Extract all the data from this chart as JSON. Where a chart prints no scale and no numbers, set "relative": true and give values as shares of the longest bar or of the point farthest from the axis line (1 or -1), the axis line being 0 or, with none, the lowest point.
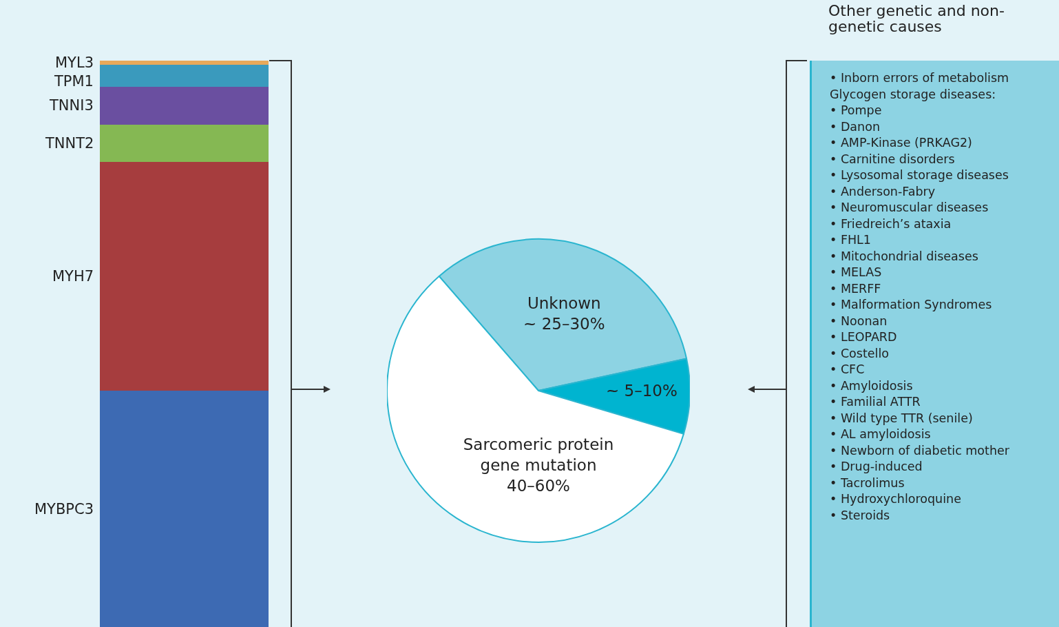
{
  "chart_data": [
    {
      "type": "bar",
      "stacked": true,
      "relative": true,
      "categories": [
        null
      ],
      "series": [
        {
          "name": "MYBPC3",
          "color": "#3d6ab3",
          "values": [
            0.417
          ]
        },
        {
          "name": "MYH7",
          "color": "#a63d3e",
          "values": [
            0.404
          ]
        },
        {
          "name": "TNNT2",
          "color": "#85b853",
          "values": [
            0.066
          ]
        },
        {
          "name": "TNNI3",
          "color": "#6a4fa0",
          "values": [
            0.067
          ]
        },
        {
          "name": "TPM1",
          "color": "#3a9abd",
          "values": [
            0.039
          ]
        },
        {
          "name": "MYL3",
          "color": "#e8a95a",
          "values": [
            0.007
          ]
        }
      ]
    },
    {
      "type": "pie",
      "categories": [
        "Unknown ~ 25–30%",
        "~ 5–10%",
        "Sarcomeric protein gene mutation 40–60%"
      ],
      "values": [
        33,
        8,
        59
      ],
      "colors": [
        "#8dd3e3",
        "#00b4d0",
        "#ffffff"
      ]
    },
    {
      "type": "other",
      "title": "Other genetic and non-genetic causes",
      "annotations": [
        "• Inborn errors of metabolism",
        "Glycogen storage diseases:",
        "• Pompe",
        "• Danon",
        "• AMP-Kinase (PRKAG2)",
        "• Carnitine disorders",
        "• Lysosomal storage diseases",
        "• Anderson-Fabry",
        "• Neuromuscular diseases",
        "• Friedreich’s ataxia",
        "• FHL1",
        "• Mitochondrial diseases",
        "• MELAS",
        "• MERFF",
        "• Malformation Syndromes",
        "• Noonan",
        "• LEOPARD",
        "• Costello",
        "• CFC",
        "• Amyloidosis",
        "• Familial ATTR",
        "• Wild type TTR (senile)",
        "• AL amyloidosis",
        "• Newborn of diabetic mother",
        "• Drug-induced",
        "• Tacrolimus",
        "• Hydroxychloroquine",
        "• Steroids"
      ]
    }
  ]
}
